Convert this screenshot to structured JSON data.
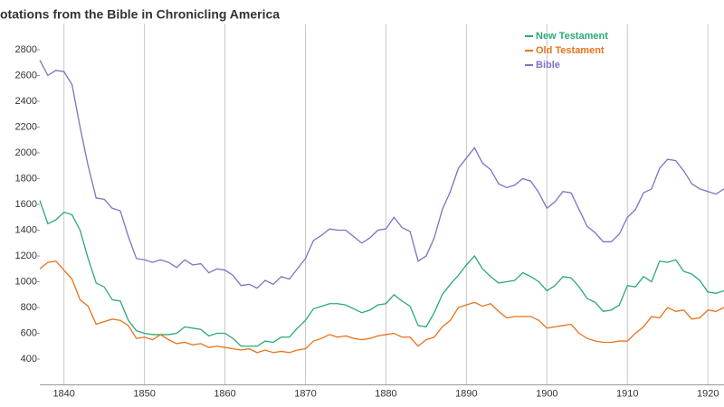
{
  "chart_data": {
    "type": "line",
    "title": "otations from the Bible in Chronicling America",
    "x": [
      1837,
      1838,
      1839,
      1840,
      1841,
      1842,
      1843,
      1844,
      1845,
      1846,
      1847,
      1848,
      1849,
      1850,
      1851,
      1852,
      1853,
      1854,
      1855,
      1856,
      1857,
      1858,
      1859,
      1860,
      1861,
      1862,
      1863,
      1864,
      1865,
      1866,
      1867,
      1868,
      1869,
      1870,
      1871,
      1872,
      1873,
      1874,
      1875,
      1876,
      1877,
      1878,
      1879,
      1880,
      1881,
      1882,
      1883,
      1884,
      1885,
      1886,
      1887,
      1888,
      1889,
      1890,
      1891,
      1892,
      1893,
      1894,
      1895,
      1896,
      1897,
      1898,
      1899,
      1900,
      1901,
      1902,
      1903,
      1904,
      1905,
      1906,
      1907,
      1908,
      1909,
      1910,
      1911,
      1912,
      1913,
      1914,
      1915,
      1916,
      1917,
      1918,
      1919,
      1920,
      1921,
      1922
    ],
    "series": [
      {
        "name": "New Testament",
        "color": "#2ca876",
        "values": [
          1630,
          1450,
          1480,
          1540,
          1520,
          1400,
          1180,
          990,
          960,
          860,
          850,
          700,
          620,
          600,
          590,
          590,
          590,
          600,
          650,
          640,
          630,
          580,
          600,
          600,
          560,
          500,
          500,
          500,
          540,
          530,
          570,
          570,
          640,
          700,
          790,
          810,
          830,
          830,
          820,
          790,
          760,
          780,
          820,
          830,
          900,
          850,
          810,
          660,
          650,
          760,
          900,
          980,
          1050,
          1130,
          1200,
          1100,
          1040,
          990,
          1000,
          1010,
          1070,
          1040,
          1000,
          930,
          970,
          1040,
          1030,
          960,
          870,
          840,
          770,
          780,
          820,
          970,
          960,
          1040,
          1000,
          1160,
          1150,
          1170,
          1080,
          1060,
          1010,
          920,
          910,
          930
        ]
      },
      {
        "name": "Old Testament",
        "color": "#e8731e",
        "values": [
          1100,
          1150,
          1160,
          1090,
          1020,
          860,
          810,
          670,
          690,
          710,
          700,
          660,
          560,
          570,
          550,
          590,
          550,
          520,
          530,
          510,
          520,
          490,
          500,
          490,
          480,
          470,
          480,
          450,
          470,
          450,
          460,
          450,
          470,
          480,
          540,
          560,
          590,
          570,
          580,
          560,
          550,
          560,
          580,
          590,
          600,
          570,
          570,
          500,
          550,
          570,
          650,
          700,
          800,
          820,
          840,
          810,
          830,
          770,
          720,
          730,
          730,
          730,
          700,
          640,
          650,
          660,
          670,
          600,
          560,
          540,
          530,
          530,
          540,
          540,
          600,
          650,
          730,
          720,
          800,
          770,
          780,
          710,
          720,
          780,
          770,
          800
        ]
      },
      {
        "name": "Bible",
        "color": "#7b73c4",
        "values": [
          2720,
          2600,
          2640,
          2630,
          2530,
          2200,
          1900,
          1650,
          1640,
          1570,
          1550,
          1350,
          1180,
          1170,
          1150,
          1170,
          1150,
          1110,
          1170,
          1130,
          1140,
          1070,
          1100,
          1090,
          1050,
          970,
          980,
          950,
          1010,
          980,
          1040,
          1020,
          1100,
          1180,
          1320,
          1360,
          1410,
          1400,
          1400,
          1350,
          1300,
          1340,
          1400,
          1410,
          1500,
          1420,
          1390,
          1160,
          1200,
          1340,
          1560,
          1700,
          1880,
          1960,
          2040,
          1920,
          1870,
          1760,
          1730,
          1750,
          1800,
          1780,
          1690,
          1570,
          1620,
          1700,
          1690,
          1560,
          1430,
          1380,
          1310,
          1310,
          1370,
          1500,
          1560,
          1690,
          1720,
          1880,
          1950,
          1940,
          1860,
          1760,
          1720,
          1700,
          1680,
          1720
        ]
      }
    ],
    "xlim": [
      1837,
      1922
    ],
    "xticks": [
      1840,
      1850,
      1860,
      1870,
      1880,
      1890,
      1900,
      1910,
      1920
    ],
    "ylim": [
      200,
      3000
    ],
    "yticks": [
      400,
      600,
      800,
      1000,
      1200,
      1400,
      1600,
      1800,
      2000,
      2200,
      2400,
      2600,
      2800
    ],
    "grid": "x",
    "legend": "top-right"
  }
}
